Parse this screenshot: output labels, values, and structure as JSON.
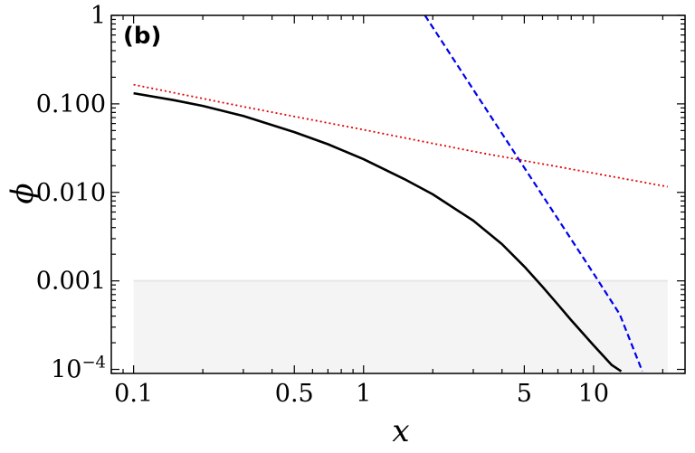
{
  "chart_data": {
    "type": "line",
    "panel_label": "(b)",
    "xlabel": "x",
    "ylabel": "ϕ",
    "x_scale": "log",
    "y_scale": "log",
    "xlim": [
      0.08,
      25
    ],
    "ylim": [
      9e-05,
      1
    ],
    "x_ticks": [
      {
        "value": 0.1,
        "label": "0.1"
      },
      {
        "value": 0.5,
        "label": "0.5"
      },
      {
        "value": 1,
        "label": "1"
      },
      {
        "value": 5,
        "label": "5"
      },
      {
        "value": 10,
        "label": "10"
      }
    ],
    "y_ticks": [
      {
        "value": 1,
        "base": "1",
        "exp": ""
      },
      {
        "value": 0.1,
        "base": "0.100",
        "exp": ""
      },
      {
        "value": 0.01,
        "base": "0.010",
        "exp": ""
      },
      {
        "value": 0.001,
        "base": "0.001",
        "exp": ""
      },
      {
        "value": 0.0001,
        "base": "10",
        "exp": "−4"
      }
    ],
    "shaded_region": {
      "y_max": 0.001,
      "x_range": [
        0.1,
        21
      ],
      "color": "#f4f4f4",
      "edge_color": "#e6e6e6"
    },
    "series": [
      {
        "style": "solid",
        "color": "#000000",
        "x": [
          0.1,
          0.15,
          0.2,
          0.3,
          0.5,
          0.7,
          1,
          1.5,
          2,
          3,
          4,
          5,
          6,
          7,
          8,
          10,
          12,
          13.2
        ],
        "y": [
          0.132,
          0.11,
          0.095,
          0.073,
          0.048,
          0.035,
          0.0237,
          0.0142,
          0.0095,
          0.0048,
          0.0026,
          0.00145,
          0.00086,
          0.00054,
          0.00036,
          0.000187,
          0.000112,
          9.5e-05
        ]
      },
      {
        "style": "dashed",
        "color": "#0000ee",
        "x": [
          1.85,
          3,
          5,
          7,
          10,
          13,
          16.3
        ],
        "y": [
          1.0,
          0.145,
          0.019,
          0.005,
          0.00121,
          0.00042,
          9.5e-05
        ]
      },
      {
        "style": "dotted",
        "color": "#e00000",
        "x": [
          0.1,
          0.3,
          1,
          3,
          10,
          21
        ],
        "y": [
          0.165,
          0.093,
          0.051,
          0.029,
          0.0165,
          0.0116
        ]
      }
    ]
  }
}
